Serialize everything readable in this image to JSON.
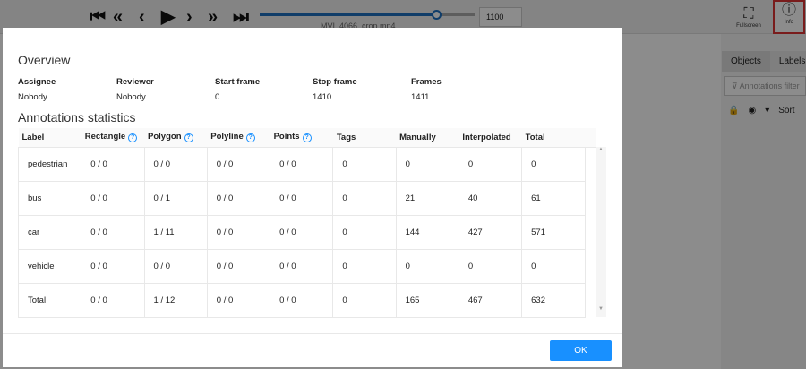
{
  "player": {
    "buttons": [
      "first-icon",
      "fast-backward-icon",
      "previous-icon",
      "play-icon",
      "next-icon",
      "fast-forward-icon",
      "last-icon"
    ],
    "progress_percent": 82,
    "frame": "1100",
    "filename": "MVI_4066_crop.mp4"
  },
  "toolbar": {
    "fullscreen": "Fullscreen",
    "info": "Info"
  },
  "sidebar": {
    "tabs": [
      "Objects",
      "Labels"
    ],
    "filter_placeholder": "Annotations filter",
    "sort": "Sort"
  },
  "modal": {
    "overview_title": "Overview",
    "overview": [
      {
        "k": "Assignee",
        "v": "Nobody"
      },
      {
        "k": "Reviewer",
        "v": "Nobody"
      },
      {
        "k": "Start frame",
        "v": "0"
      },
      {
        "k": "Stop frame",
        "v": "1410"
      },
      {
        "k": "Frames",
        "v": "1411"
      }
    ],
    "stats_title": "Annotations statistics",
    "columns": [
      "Label",
      "Rectangle",
      "Polygon",
      "Polyline",
      "Points",
      "Tags",
      "Manually",
      "Interpolated",
      "Total"
    ],
    "help_columns": [
      1,
      2,
      3,
      4
    ],
    "rows": [
      [
        "pedestrian",
        "0 / 0",
        "0 / 0",
        "0 / 0",
        "0 / 0",
        "0",
        "0",
        "0",
        "0"
      ],
      [
        "bus",
        "0 / 0",
        "0 / 1",
        "0 / 0",
        "0 / 0",
        "0",
        "21",
        "40",
        "61"
      ],
      [
        "car",
        "0 / 0",
        "1 / 11",
        "0 / 0",
        "0 / 0",
        "0",
        "144",
        "427",
        "571"
      ],
      [
        "vehicle",
        "0 / 0",
        "0 / 0",
        "0 / 0",
        "0 / 0",
        "0",
        "0",
        "0",
        "0"
      ],
      [
        "Total",
        "0 / 0",
        "1 / 12",
        "0 / 0",
        "0 / 0",
        "0",
        "165",
        "467",
        "632"
      ]
    ],
    "ok": "OK"
  },
  "colors": {
    "primary": "#1890ff",
    "highlight": "#d33333"
  }
}
